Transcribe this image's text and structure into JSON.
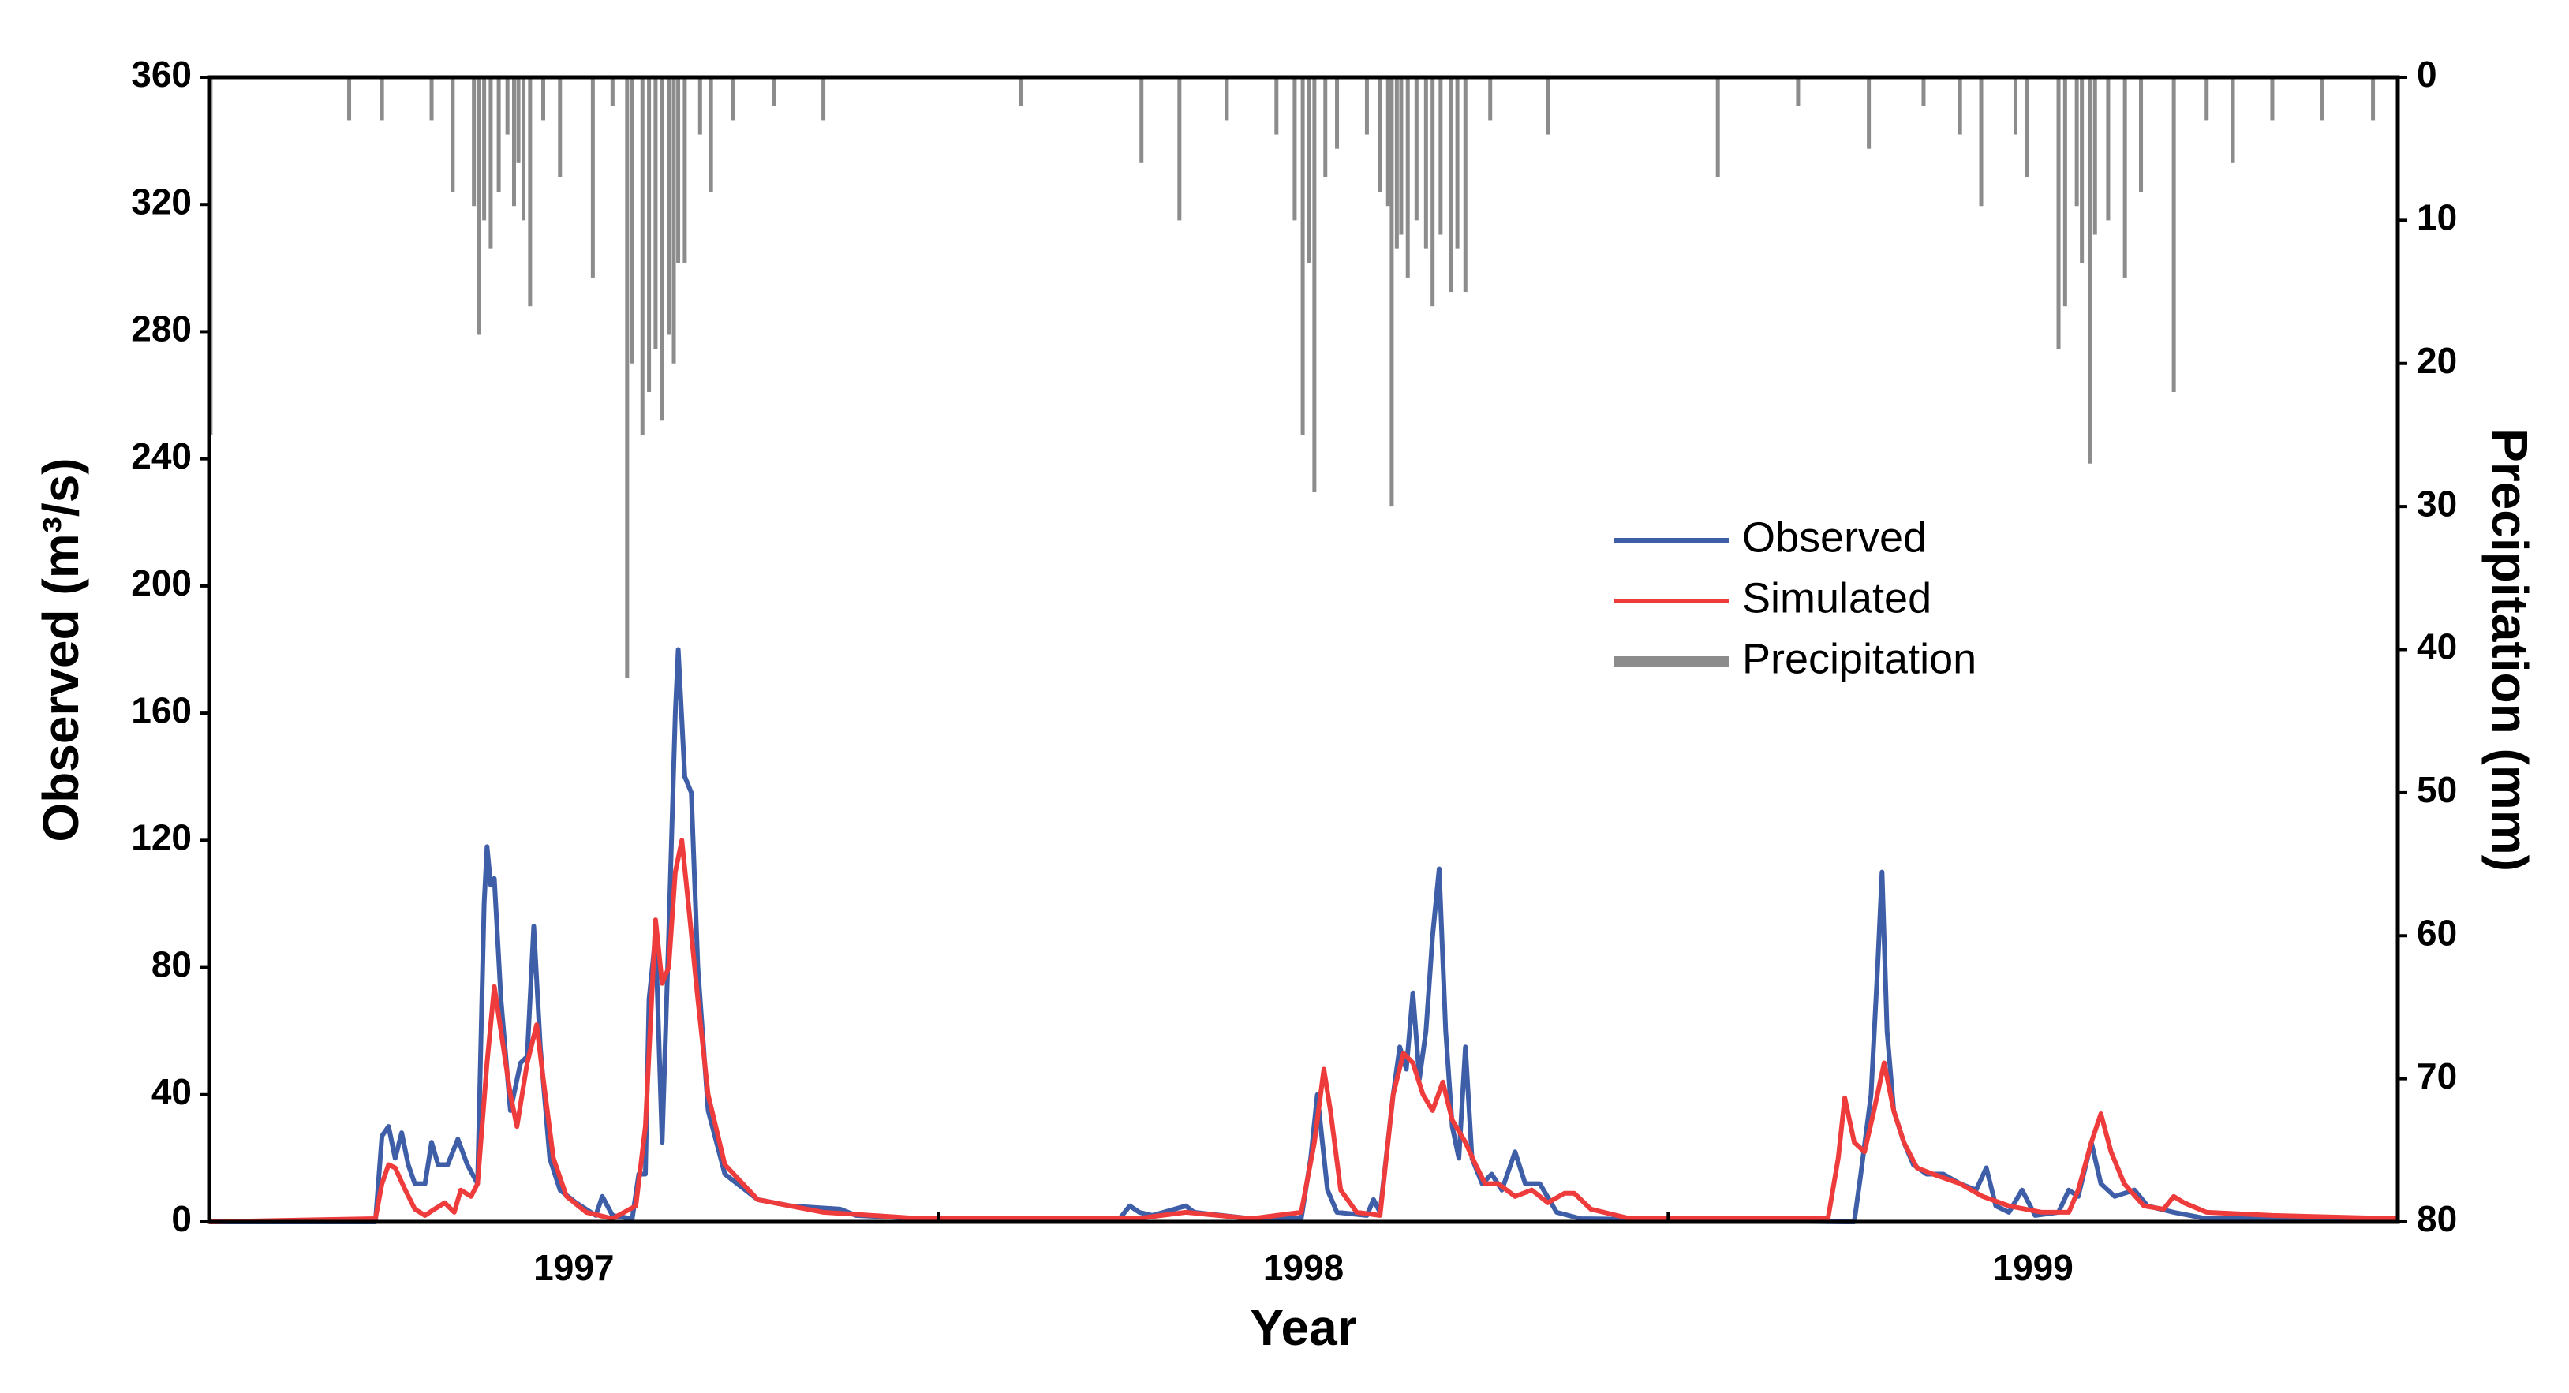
{
  "chart_data": {
    "type": "line",
    "xlabel": "Year",
    "ylabel": "Observed (m³/s)",
    "y2label": "Precipitation (mm)",
    "xlim": [
      1997,
      2000
    ],
    "xticks": [
      {
        "value": 1997.5,
        "label": "1997"
      },
      {
        "value": 1998.5,
        "label": "1998"
      },
      {
        "value": 1999.5,
        "label": "1999"
      }
    ],
    "xminorticks": [
      1998,
      1999
    ],
    "ylim": [
      0,
      360
    ],
    "yticks": [
      0,
      40,
      80,
      120,
      160,
      200,
      240,
      280,
      320,
      360
    ],
    "y2lim": [
      80,
      0
    ],
    "y2ticks": [
      0,
      10,
      20,
      30,
      40,
      50,
      60,
      70,
      80
    ],
    "legend": "upper right",
    "series": [
      {
        "name": "Observed",
        "color": "#3f5ea8",
        "type": "line",
        "x": [
          1997.0,
          1997.228,
          1997.237,
          1997.246,
          1997.255,
          1997.264,
          1997.273,
          1997.282,
          1997.296,
          1997.305,
          1997.314,
          1997.327,
          1997.341,
          1997.354,
          1997.368,
          1997.377,
          1997.381,
          1997.386,
          1997.391,
          1997.4,
          1997.413,
          1997.427,
          1997.436,
          1997.445,
          1997.454,
          1997.467,
          1997.481,
          1997.503,
          1997.53,
          1997.539,
          1997.553,
          1997.58,
          1997.589,
          1997.598,
          1997.603,
          1997.612,
          1997.621,
          1997.63,
          1997.639,
          1997.643,
          1997.652,
          1997.661,
          1997.67,
          1997.684,
          1997.707,
          1997.752,
          1997.797,
          1997.865,
          1997.887,
          1997.977,
          1998.248,
          1998.262,
          1998.275,
          1998.293,
          1998.339,
          1998.35,
          1998.429,
          1998.497,
          1998.51,
          1998.519,
          1998.533,
          1998.546,
          1998.587,
          1998.596,
          1998.605,
          1998.623,
          1998.632,
          1998.641,
          1998.65,
          1998.659,
          1998.668,
          1998.677,
          1998.686,
          1998.695,
          1998.704,
          1998.713,
          1998.722,
          1998.731,
          1998.745,
          1998.758,
          1998.772,
          1998.79,
          1998.804,
          1998.824,
          1998.847,
          1998.88,
          1999.242,
          1999.255,
          1999.264,
          1999.278,
          1999.287,
          1999.293,
          1999.3,
          1999.309,
          1999.323,
          1999.336,
          1999.354,
          1999.377,
          1999.4,
          1999.422,
          1999.436,
          1999.449,
          1999.467,
          1999.485,
          1999.503,
          1999.535,
          1999.549,
          1999.562,
          1999.58,
          1999.593,
          1999.612,
          1999.639,
          1999.657,
          1999.693,
          1999.738,
          2000.0
        ],
        "values": [
          0,
          0,
          27,
          30,
          20,
          28,
          18,
          12,
          12,
          25,
          18,
          18,
          26,
          18,
          12,
          100,
          118,
          106,
          108,
          70,
          35,
          50,
          52,
          93,
          55,
          20,
          10,
          6,
          2,
          8,
          2,
          1,
          15,
          15,
          70,
          90,
          25,
          90,
          160,
          180,
          140,
          135,
          80,
          35,
          15,
          7,
          5,
          4,
          2,
          1,
          1,
          5,
          3,
          2,
          5,
          3,
          1,
          1,
          20,
          40,
          10,
          3,
          2,
          7,
          3,
          40,
          55,
          48,
          72,
          45,
          60,
          90,
          111,
          60,
          30,
          20,
          55,
          20,
          12,
          15,
          10,
          22,
          12,
          12,
          3,
          1,
          0,
          0,
          15,
          40,
          80,
          110,
          60,
          35,
          25,
          18,
          15,
          15,
          12,
          10,
          17,
          5,
          3,
          10,
          2,
          3,
          10,
          8,
          25,
          12,
          8,
          10,
          5,
          3,
          1,
          1
        ]
      },
      {
        "name": "Simulated",
        "color": "#ee3b3b",
        "type": "line",
        "x": [
          1997.0,
          1997.228,
          1997.237,
          1997.246,
          1997.255,
          1997.269,
          1997.282,
          1997.296,
          1997.309,
          1997.323,
          1997.336,
          1997.345,
          1997.359,
          1997.368,
          1997.381,
          1997.391,
          1997.4,
          1997.413,
          1997.422,
          1997.436,
          1997.449,
          1997.458,
          1997.472,
          1997.49,
          1997.517,
          1997.553,
          1997.585,
          1997.598,
          1997.612,
          1997.621,
          1997.63,
          1997.639,
          1997.648,
          1997.657,
          1997.67,
          1997.684,
          1997.707,
          1997.752,
          1997.842,
          1997.977,
          1998.271,
          1998.339,
          1998.429,
          1998.497,
          1998.515,
          1998.528,
          1998.537,
          1998.551,
          1998.573,
          1998.605,
          1998.623,
          1998.637,
          1998.65,
          1998.664,
          1998.677,
          1998.691,
          1998.704,
          1998.722,
          1998.736,
          1998.749,
          1998.767,
          1998.79,
          1998.813,
          1998.835,
          1998.858,
          1998.871,
          1998.894,
          1998.948,
          1999.219,
          1999.233,
          1999.242,
          1999.255,
          1999.269,
          1999.282,
          1999.296,
          1999.309,
          1999.323,
          1999.341,
          1999.363,
          1999.4,
          1999.431,
          1999.467,
          1999.512,
          1999.549,
          1999.562,
          1999.58,
          1999.593,
          1999.607,
          1999.625,
          1999.652,
          1999.679,
          1999.693,
          1999.707,
          1999.738,
          1999.828,
          2000.0
        ],
        "values": [
          0,
          1,
          12,
          18,
          17,
          10,
          4,
          2,
          4,
          6,
          3,
          10,
          8,
          12,
          50,
          74,
          60,
          40,
          30,
          50,
          62,
          45,
          20,
          8,
          3,
          1,
          5,
          30,
          95,
          75,
          80,
          110,
          120,
          100,
          70,
          40,
          18,
          7,
          3,
          1,
          1,
          3,
          1,
          3,
          25,
          48,
          35,
          10,
          3,
          2,
          40,
          53,
          50,
          40,
          35,
          44,
          32,
          25,
          18,
          12,
          12,
          8,
          10,
          6,
          9,
          9,
          4,
          1,
          1,
          20,
          39,
          25,
          22,
          35,
          50,
          35,
          25,
          17,
          15,
          12,
          8,
          5,
          3,
          3,
          10,
          25,
          34,
          22,
          12,
          5,
          4,
          8,
          6,
          3,
          2,
          1
        ]
      },
      {
        "name": "Precipitation",
        "color": "#8c8c8c",
        "type": "bar",
        "axis": "y2",
        "x": [
          1997.002,
          1997.192,
          1997.237,
          1997.305,
          1997.334,
          1997.363,
          1997.37,
          1997.377,
          1997.386,
          1997.397,
          1997.409,
          1997.418,
          1997.424,
          1997.431,
          1997.44,
          1997.458,
          1997.481,
          1997.526,
          1997.553,
          1997.573,
          1997.58,
          1997.594,
          1997.603,
          1997.612,
          1997.621,
          1997.63,
          1997.637,
          1997.643,
          1997.652,
          1997.673,
          1997.688,
          1997.718,
          1997.774,
          1997.842,
          1998.113,
          1998.278,
          1998.33,
          1998.395,
          1998.463,
          1998.488,
          1998.499,
          1998.508,
          1998.515,
          1998.53,
          1998.546,
          1998.587,
          1998.605,
          1998.616,
          1998.621,
          1998.628,
          1998.634,
          1998.643,
          1998.655,
          1998.668,
          1998.677,
          1998.688,
          1998.702,
          1998.711,
          1998.722,
          1998.756,
          1998.835,
          1999.068,
          1999.178,
          1999.275,
          1999.35,
          1999.4,
          1999.429,
          1999.476,
          1999.492,
          1999.535,
          1999.544,
          1999.56,
          1999.567,
          1999.578,
          1999.585,
          1999.603,
          1999.626,
          1999.648,
          1999.693,
          1999.738,
          1999.774,
          1999.828,
          1999.896,
          1999.966
        ],
        "values": [
          25,
          3,
          3,
          3,
          8,
          9,
          18,
          10,
          12,
          8,
          4,
          9,
          6,
          10,
          16,
          3,
          7,
          14,
          2,
          42,
          20,
          25,
          22,
          19,
          24,
          18,
          20,
          13,
          13,
          4,
          8,
          3,
          2,
          3,
          2,
          6,
          10,
          3,
          4,
          10,
          25,
          13,
          29,
          7,
          5,
          4,
          8,
          9,
          30,
          12,
          11,
          14,
          10,
          12,
          16,
          11,
          15,
          12,
          15,
          3,
          4,
          7,
          2,
          5,
          2,
          4,
          9,
          4,
          7,
          19,
          16,
          9,
          13,
          27,
          11,
          10,
          14,
          8,
          22,
          3,
          6,
          3,
          3,
          3
        ]
      }
    ]
  }
}
